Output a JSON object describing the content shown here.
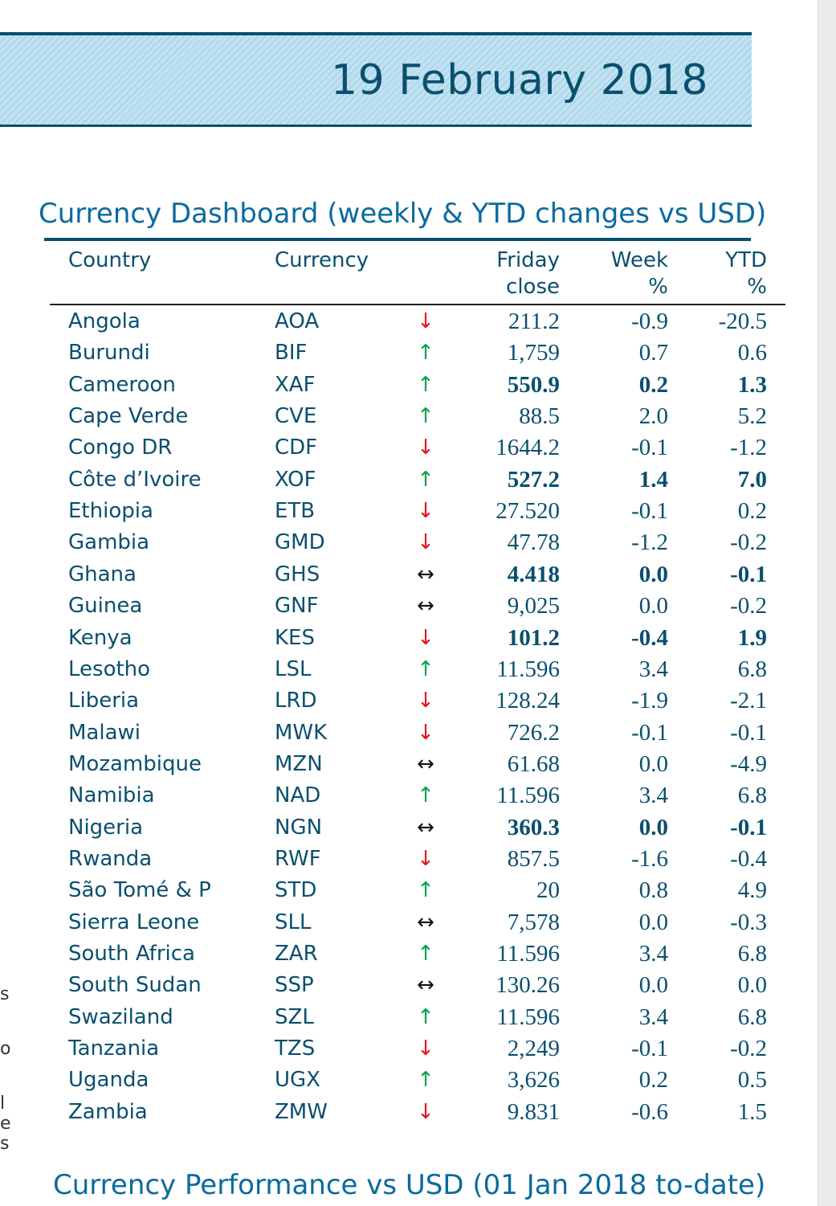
{
  "banner": {
    "date": "19 February 2018"
  },
  "dashboard": {
    "title": "Currency Dashboard (weekly & YTD changes vs USD)",
    "headers": {
      "country": "Country",
      "currency": "Currency",
      "close_line1": "Friday",
      "close_line2": "close",
      "week_line1": "Week",
      "week_line2": "%",
      "ytd_line1": "YTD",
      "ytd_line2": "%"
    },
    "rows": [
      {
        "country": "Angola",
        "currency": "AOA",
        "dir": "down",
        "close": "211.2",
        "week": "-0.9",
        "ytd": "-20.5",
        "bold": false
      },
      {
        "country": "Burundi",
        "currency": "BIF",
        "dir": "up",
        "close": "1,759",
        "week": "0.7",
        "ytd": "0.6",
        "bold": false
      },
      {
        "country": "Cameroon",
        "currency": "XAF",
        "dir": "up",
        "close": "550.9",
        "week": "0.2",
        "ytd": "1.3",
        "bold": true
      },
      {
        "country": "Cape Verde",
        "currency": "CVE",
        "dir": "up",
        "close": "88.5",
        "week": "2.0",
        "ytd": "5.2",
        "bold": false
      },
      {
        "country": "Congo DR",
        "currency": "CDF",
        "dir": "down",
        "close": "1644.2",
        "week": "-0.1",
        "ytd": "-1.2",
        "bold": false
      },
      {
        "country": "Côte d’Ivoire",
        "currency": "XOF",
        "dir": "up",
        "close": "527.2",
        "week": "1.4",
        "ytd": "7.0",
        "bold": true
      },
      {
        "country": "Ethiopia",
        "currency": "ETB",
        "dir": "down",
        "close": "27.520",
        "week": "-0.1",
        "ytd": "0.2",
        "bold": false
      },
      {
        "country": "Gambia",
        "currency": "GMD",
        "dir": "down",
        "close": "47.78",
        "week": "-1.2",
        "ytd": "-0.2",
        "bold": false
      },
      {
        "country": "Ghana",
        "currency": "GHS",
        "dir": "flat",
        "close": "4.418",
        "week": "0.0",
        "ytd": "-0.1",
        "bold": true
      },
      {
        "country": "Guinea",
        "currency": "GNF",
        "dir": "flat",
        "close": "9,025",
        "week": "0.0",
        "ytd": "-0.2",
        "bold": false
      },
      {
        "country": "Kenya",
        "currency": "KES",
        "dir": "down",
        "close": "101.2",
        "week": "-0.4",
        "ytd": "1.9",
        "bold": true
      },
      {
        "country": "Lesotho",
        "currency": "LSL",
        "dir": "up",
        "close": "11.596",
        "week": "3.4",
        "ytd": "6.8",
        "bold": false
      },
      {
        "country": "Liberia",
        "currency": "LRD",
        "dir": "down",
        "close": "128.24",
        "week": "-1.9",
        "ytd": "-2.1",
        "bold": false
      },
      {
        "country": "Malawi",
        "currency": "MWK",
        "dir": "down",
        "close": "726.2",
        "week": "-0.1",
        "ytd": "-0.1",
        "bold": false
      },
      {
        "country": "Mozambique",
        "currency": "MZN",
        "dir": "flat",
        "close": "61.68",
        "week": "0.0",
        "ytd": "-4.9",
        "bold": false
      },
      {
        "country": "Namibia",
        "currency": "NAD",
        "dir": "up",
        "close": "11.596",
        "week": "3.4",
        "ytd": "6.8",
        "bold": false
      },
      {
        "country": "Nigeria",
        "currency": "NGN",
        "dir": "flat",
        "close": "360.3",
        "week": "0.0",
        "ytd": "-0.1",
        "bold": true
      },
      {
        "country": "Rwanda",
        "currency": "RWF",
        "dir": "down",
        "close": "857.5",
        "week": "-1.6",
        "ytd": "-0.4",
        "bold": false
      },
      {
        "country": "São Tomé & P",
        "currency": "STD",
        "dir": "up",
        "close": "20",
        "week": "0.8",
        "ytd": "4.9",
        "bold": false
      },
      {
        "country": "Sierra Leone",
        "currency": "SLL",
        "dir": "flat",
        "close": "7,578",
        "week": "0.0",
        "ytd": "-0.3",
        "bold": false
      },
      {
        "country": "South Africa",
        "currency": "ZAR",
        "dir": "up",
        "close": "11.596",
        "week": "3.4",
        "ytd": "6.8",
        "bold": false
      },
      {
        "country": "South Sudan",
        "currency": "SSP",
        "dir": "flat",
        "close": "130.26",
        "week": "0.0",
        "ytd": "0.0",
        "bold": false
      },
      {
        "country": "Swaziland",
        "currency": "SZL",
        "dir": "up",
        "close": "11.596",
        "week": "3.4",
        "ytd": "6.8",
        "bold": false
      },
      {
        "country": "Tanzania",
        "currency": "TZS",
        "dir": "down",
        "close": "2,249",
        "week": "-0.1",
        "ytd": "-0.2",
        "bold": false
      },
      {
        "country": "Uganda",
        "currency": "UGX",
        "dir": "up",
        "close": "3,626",
        "week": "0.2",
        "ytd": "0.5",
        "bold": false
      },
      {
        "country": "Zambia",
        "currency": "ZMW",
        "dir": "down",
        "close": "9.831",
        "week": "-0.6",
        "ytd": "1.5",
        "bold": false
      }
    ],
    "arrow_glyphs": {
      "up": "↑",
      "down": "↓",
      "flat": "↔"
    },
    "arrow_colors": {
      "up": "#00a44a",
      "down": "#e0161b",
      "flat": "#111111"
    }
  },
  "performance": {
    "title": "Currency Performance vs USD (01 Jan 2018 to-date)"
  },
  "side_fragment": [
    "s",
    "o",
    "l",
    "e",
    "s"
  ]
}
